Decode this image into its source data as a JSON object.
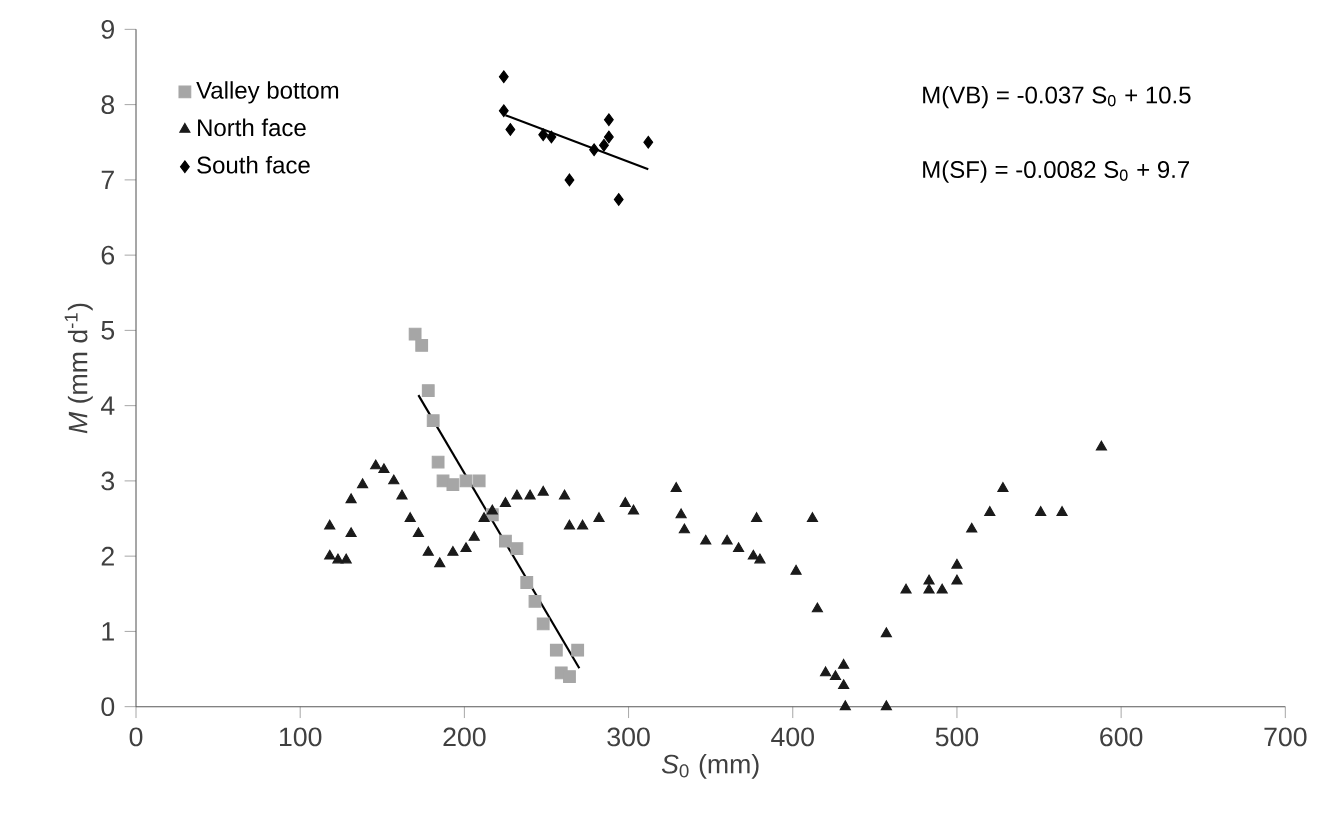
{
  "chart_data": {
    "type": "scatter",
    "xlabel": "*S*$_{0}$ (mm)",
    "ylabel": "*M* (mm d$^{-1}$)",
    "xlim": [
      0,
      700
    ],
    "xticks": [
      0,
      100,
      200,
      300,
      400,
      500,
      600,
      700
    ],
    "ylim": [
      0,
      9
    ],
    "yticks": [
      0,
      1,
      2,
      3,
      4,
      5,
      6,
      7,
      8,
      9
    ],
    "grid": false,
    "legend": "top left",
    "annotations": [
      "M(VB) = -0.037 S$_{0}$ + 10.5",
      "M(SF) = -0.0082 S$_{0}$ + 9.7"
    ],
    "series": [
      {
        "name": "Valley bottom",
        "color": "#a6a6a6",
        "marker": "square",
        "x": [
          170,
          174,
          178,
          181,
          184,
          187,
          193,
          201,
          209,
          217,
          225,
          232,
          238,
          243,
          248,
          256,
          259,
          264,
          269
        ],
        "values": [
          4.95,
          4.8,
          4.2,
          3.8,
          3.25,
          3.0,
          2.95,
          3.0,
          3.0,
          2.55,
          2.2,
          2.1,
          1.65,
          1.4,
          1.1,
          0.75,
          0.45,
          0.4,
          0.75
        ]
      },
      {
        "name": "North face",
        "color": "#1a1a1a",
        "marker": "triangle",
        "x": [
          118,
          118,
          123,
          128,
          131,
          131,
          138,
          146,
          151,
          157,
          162,
          167,
          172,
          178,
          185,
          193,
          201,
          206,
          212,
          217,
          225,
          232,
          240,
          248,
          261,
          264,
          272,
          282,
          298,
          303,
          329,
          332,
          334,
          347,
          360,
          367,
          376,
          378,
          380,
          402,
          412,
          415,
          420,
          426,
          431,
          431,
          432,
          457,
          457,
          469,
          483,
          483,
          491,
          500,
          500,
          509,
          520,
          528,
          551,
          564,
          588
        ],
        "values": [
          2.4,
          2.0,
          1.95,
          1.95,
          2.3,
          2.75,
          2.95,
          3.2,
          3.15,
          3.0,
          2.8,
          2.5,
          2.3,
          2.05,
          1.9,
          2.05,
          2.1,
          2.25,
          2.5,
          2.6,
          2.7,
          2.8,
          2.8,
          2.85,
          2.8,
          2.4,
          2.4,
          2.5,
          2.7,
          2.6,
          2.9,
          2.55,
          2.35,
          2.2,
          2.2,
          2.1,
          2.0,
          2.5,
          1.95,
          1.8,
          2.5,
          1.3,
          0.45,
          0.4,
          0.55,
          0.28,
          0.0,
          0.97,
          0.0,
          1.55,
          1.67,
          1.55,
          1.55,
          1.88,
          1.67,
          2.36,
          2.58,
          2.9,
          2.58,
          2.58,
          3.45
        ]
      },
      {
        "name": "South face",
        "color": "#000000",
        "marker": "diamond",
        "x": [
          224,
          224,
          228,
          248,
          253,
          264,
          279,
          285,
          288,
          288,
          294,
          312
        ],
        "values": [
          8.37,
          7.92,
          7.67,
          7.6,
          7.57,
          7.0,
          7.4,
          7.46,
          7.8,
          7.57,
          6.74,
          7.5
        ]
      },
      {
        "type": "line",
        "color": "#000000",
        "marker": "none",
        "x": [
          172,
          270
        ],
        "values": [
          4.14,
          0.51
        ]
      },
      {
        "type": "line",
        "color": "#000000",
        "marker": "none",
        "x": [
          225,
          312
        ],
        "values": [
          7.86,
          7.14
        ]
      }
    ]
  }
}
